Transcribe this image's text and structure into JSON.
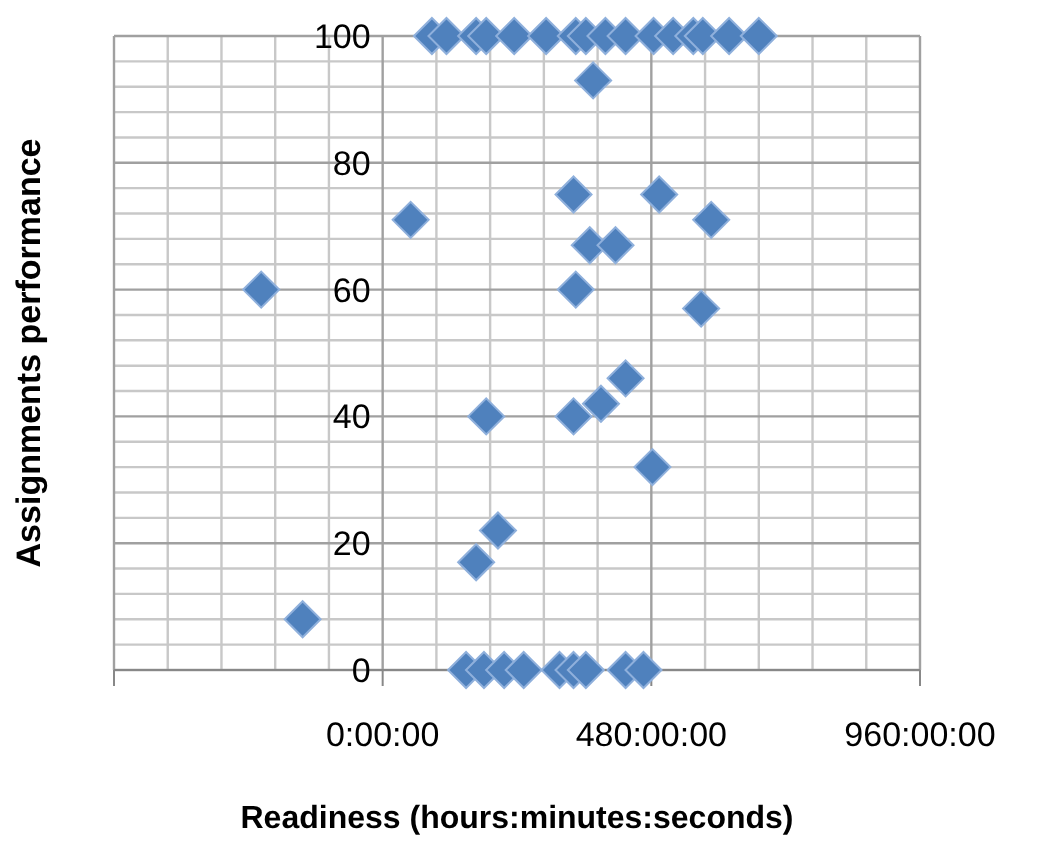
{
  "chart_data": {
    "type": "scatter",
    "xlabel": "Readiness  (hours:minutes:seconds)",
    "ylabel": "Assignments performance",
    "x": [
      88,
      114,
      167,
      185,
      235,
      292,
      345,
      363,
      398,
      434,
      484,
      519,
      555,
      572,
      619,
      672,
      376,
      341,
      494,
      50,
      587,
      370,
      416,
      -217,
      345,
      569,
      185,
      341,
      390,
      434,
      482,
      206,
      167,
      -143,
      149,
      181,
      217,
      252,
      316,
      341,
      363,
      434,
      466
    ],
    "series": [
      {
        "color": "#4f81bd",
        "values": [
          100,
          100,
          100,
          100,
          100,
          100,
          100,
          100,
          100,
          100,
          100,
          100,
          100,
          100,
          100,
          100,
          93,
          75,
          75,
          71,
          71,
          67,
          67,
          60,
          60,
          57,
          40,
          40,
          42,
          46,
          32,
          22,
          17,
          8,
          0,
          0,
          0,
          0,
          0,
          0,
          0,
          0,
          0
        ]
      }
    ],
    "xlim": [
      -480,
      960
    ],
    "xticks": [
      {
        "value": -480,
        "label": null
      },
      {
        "value": 0,
        "label": "0:00:00"
      },
      {
        "value": 480,
        "label": "480:00:00"
      },
      {
        "value": 960,
        "label": "960:00:00"
      }
    ],
    "ylim": [
      0,
      100
    ],
    "yticks": [
      0,
      20,
      40,
      60,
      80,
      100
    ],
    "grid": true,
    "marker": "diamond",
    "legend": false
  }
}
